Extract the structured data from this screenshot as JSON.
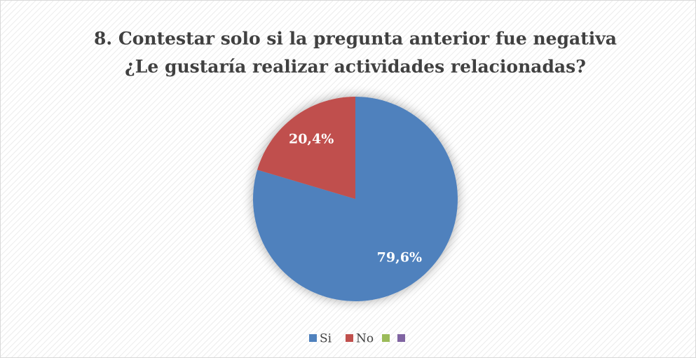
{
  "chart_data": {
    "type": "pie",
    "title": [
      "8. Contestar solo si la pregunta anterior fue negativa",
      "¿Le gustaría realizar actividades relacionadas?"
    ],
    "categories": [
      "Si",
      "No",
      null,
      null
    ],
    "values": [
      79.6,
      20.4,
      0,
      0
    ],
    "value_labels": [
      "79,6%",
      "20,4%",
      null,
      null
    ],
    "colors": [
      "#4f81bd",
      "#c0504d",
      "#9bbb59",
      "#8064a2"
    ],
    "legend": "bottom"
  }
}
